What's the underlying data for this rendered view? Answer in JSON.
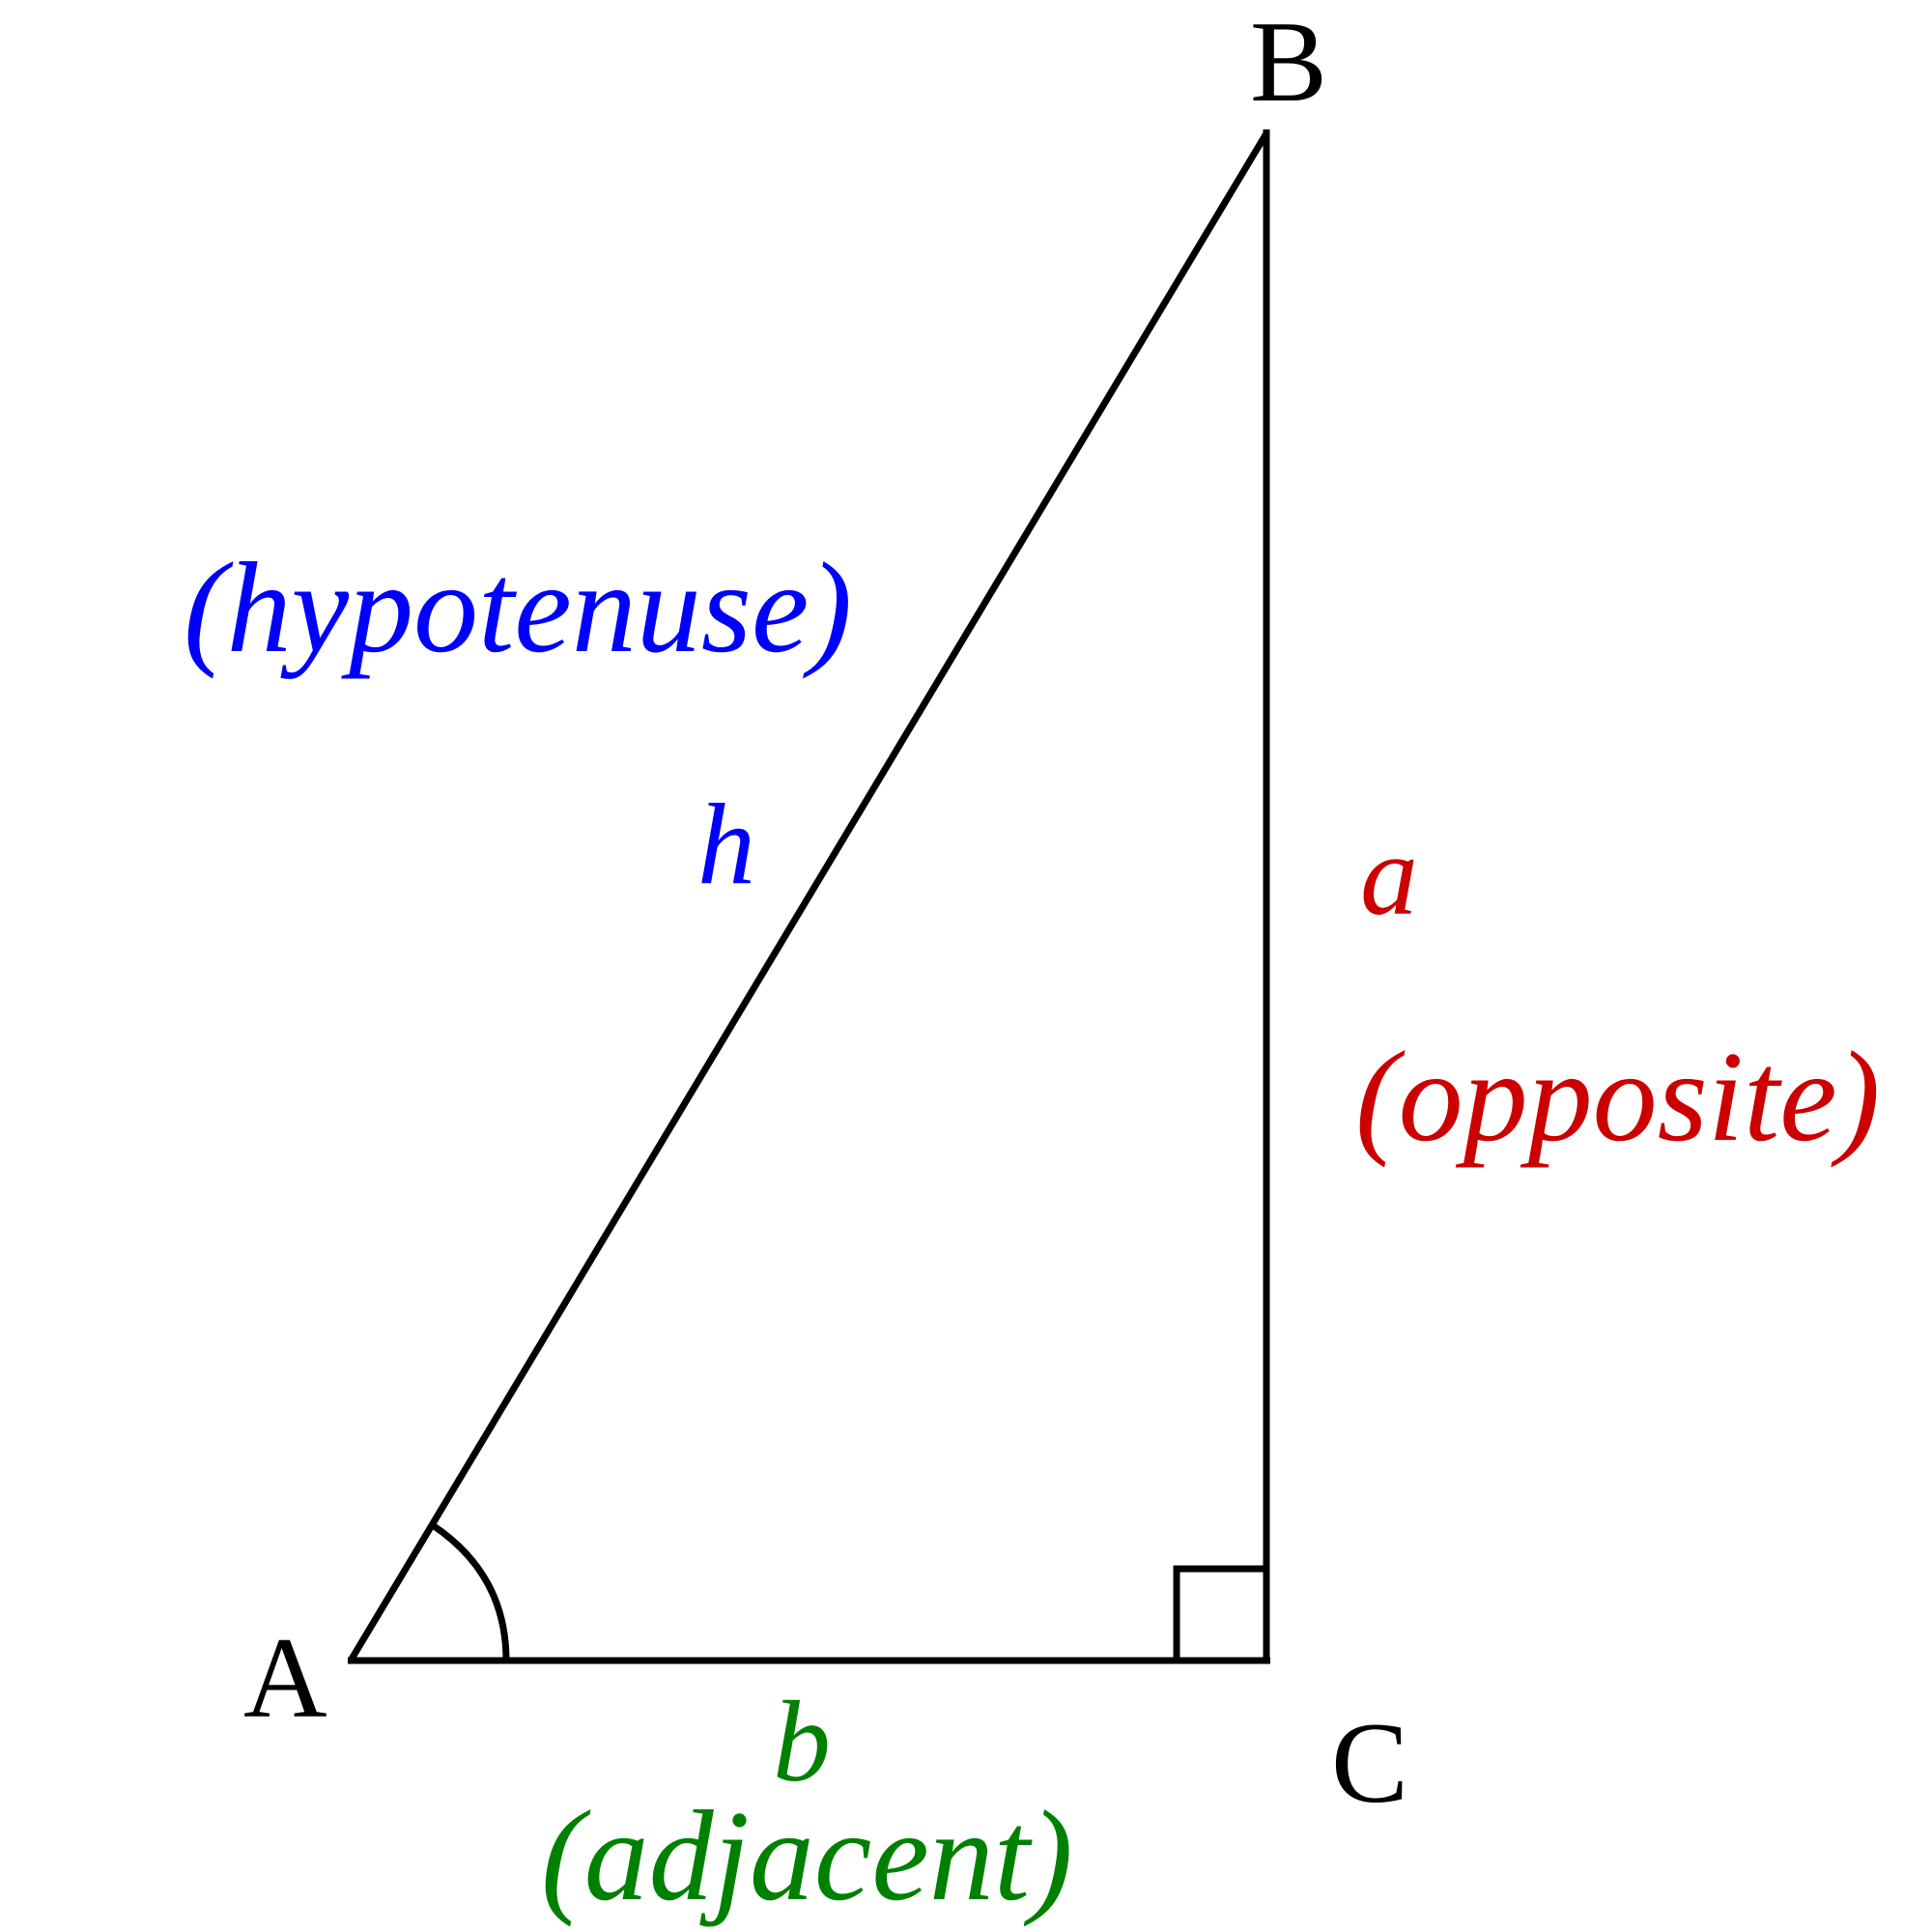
{
  "vertices": {
    "A": "A",
    "B": "B",
    "C": "C"
  },
  "sides": {
    "hypotenuse": {
      "symbol": "h",
      "word": "(hypotenuse)",
      "color": "#0000ff"
    },
    "opposite": {
      "symbol": "a",
      "word": "(opposite)",
      "color": "#cc0000"
    },
    "adjacent": {
      "symbol": "b",
      "word": "(adjacent)",
      "color": "#008000"
    }
  },
  "markers": {
    "right_angle_at": "C",
    "angle_arc_at": "A"
  }
}
